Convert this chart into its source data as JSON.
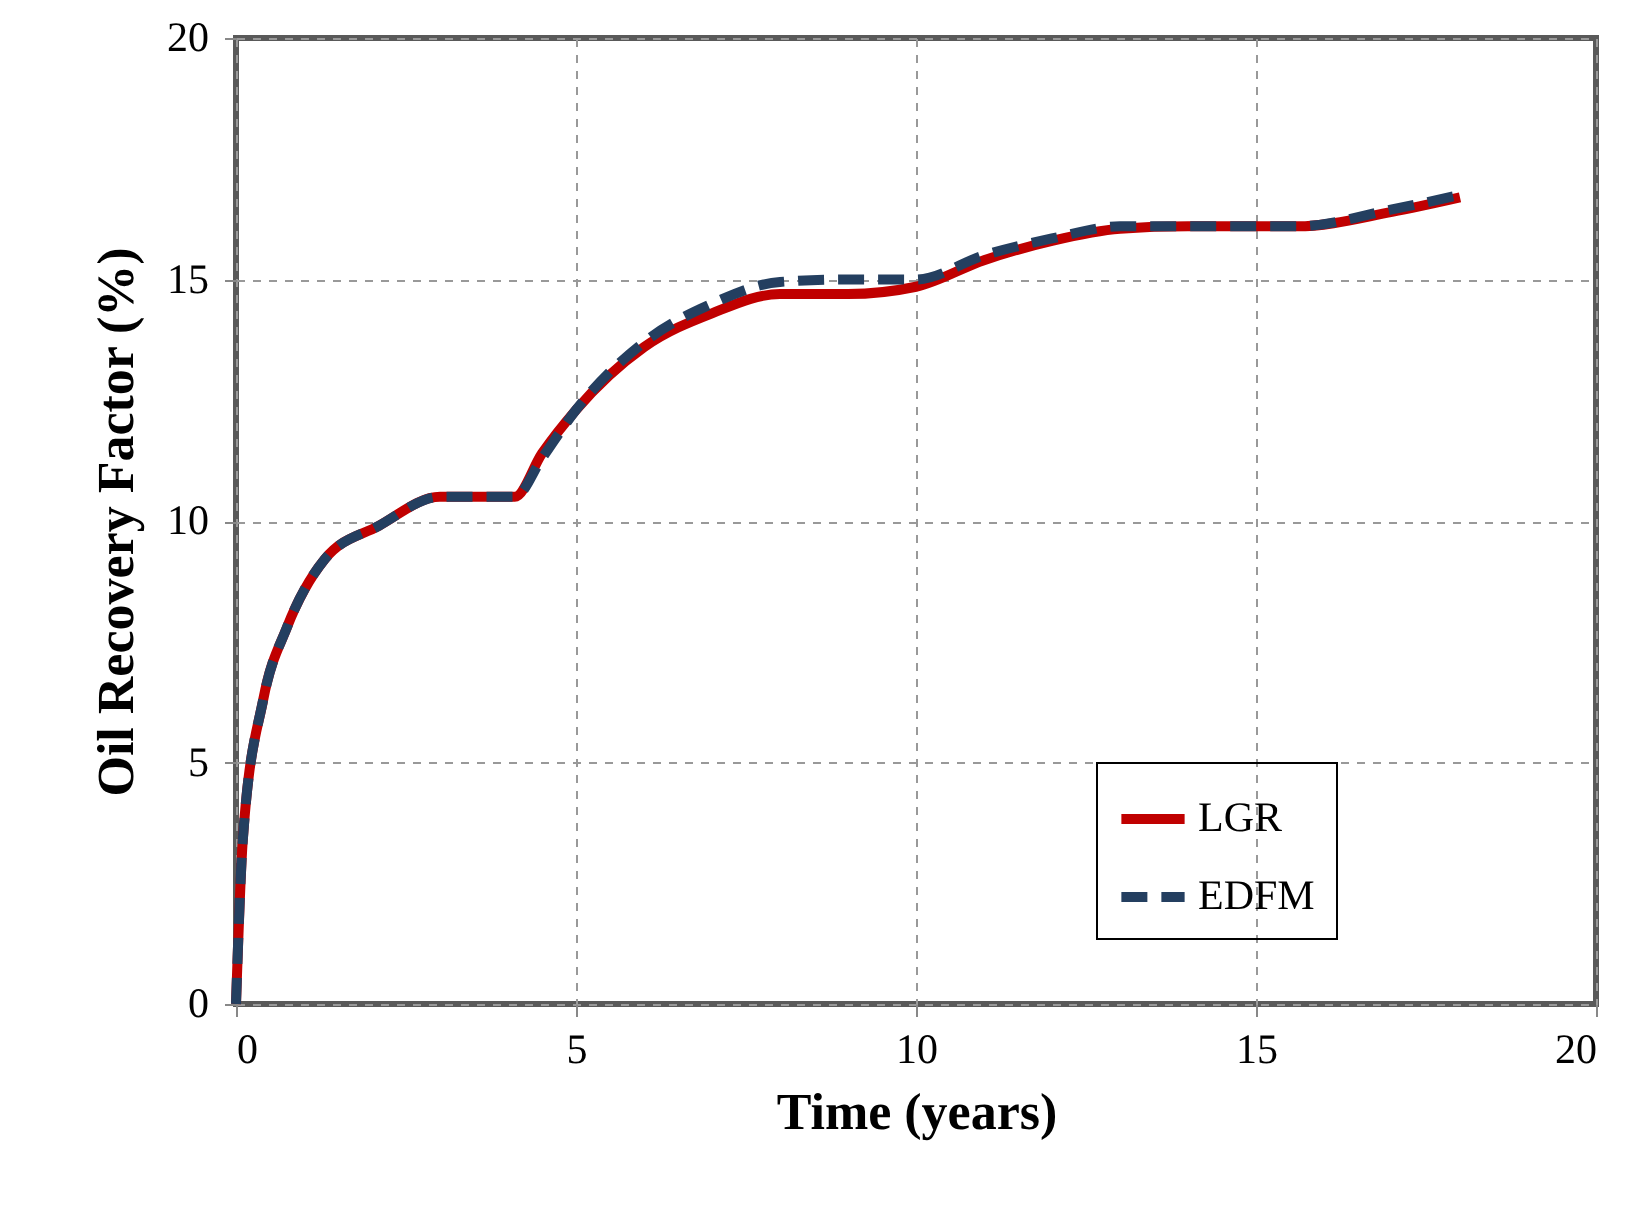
{
  "chart_data": {
    "type": "line",
    "xlabel": "Time (years)",
    "ylabel": "Oil Recovery  Factor (%)",
    "x": [
      0,
      0.1,
      0.4,
      0.75,
      1.3,
      2.1,
      3,
      4.1,
      4.5,
      5,
      6,
      7,
      8,
      9,
      10,
      11,
      12,
      13,
      14,
      15,
      15.6,
      17,
      18
    ],
    "series": [
      {
        "name": "LGR",
        "color": "#c00000",
        "line_style": "solid",
        "values": [
          0,
          3.4,
          6.3,
          7.8,
          9.2,
          9.9,
          10.5,
          10.5,
          11.4,
          12.3,
          13.6,
          14.3,
          14.7,
          14.7,
          14.85,
          15.4,
          15.8,
          16.05,
          16.1,
          16.1,
          16.1,
          16.4,
          16.7
        ]
      },
      {
        "name": "EDFM",
        "color": "#243f60",
        "line_style": "dashed",
        "values": [
          0,
          3.4,
          6.3,
          7.8,
          9.2,
          9.9,
          10.5,
          10.5,
          11.3,
          12.3,
          13.7,
          14.5,
          14.95,
          15.0,
          15.0,
          15.5,
          15.85,
          16.1,
          16.1,
          16.1,
          16.1,
          16.45,
          16.75
        ]
      }
    ],
    "xlim": [
      0,
      20
    ],
    "xticks": [
      0,
      5,
      10,
      15,
      20
    ],
    "ylim": [
      0,
      20
    ],
    "yticks": [
      0,
      5,
      10,
      15,
      20
    ],
    "grid": true,
    "legend": "bottom right"
  }
}
